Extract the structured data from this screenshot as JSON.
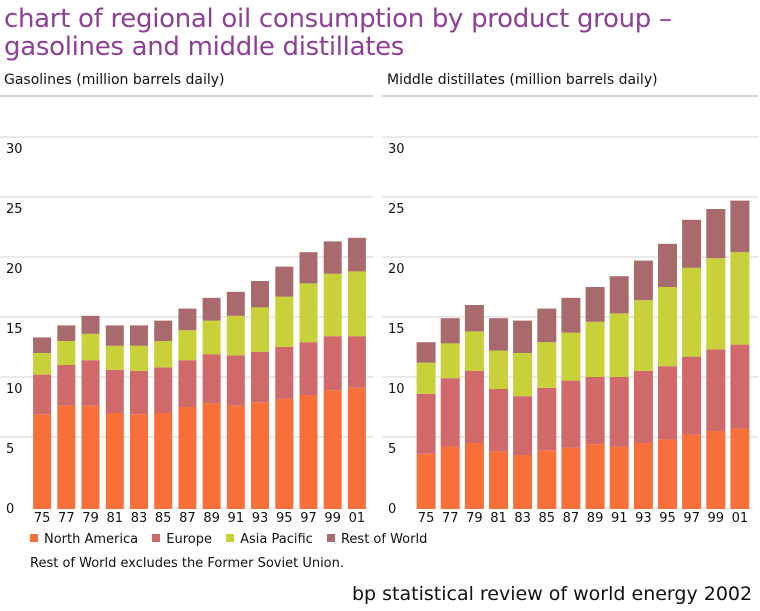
{
  "title_line1": "chart of regional oil consumption by product group –",
  "title_line2": "gasolines and middle distillates",
  "colors": {
    "north_america": "#f7703a",
    "europe": "#d06a6a",
    "asia_pacific": "#c9d13a",
    "rest_of_world": "#a86a6c",
    "title": "#8e3f97"
  },
  "legend": [
    "North America",
    "Europe",
    "Asia Pacific",
    "Rest of World"
  ],
  "note": "Rest of World excludes the Former Soviet Union.",
  "footer": "bp statistical review of world energy 2002",
  "chart_data": [
    {
      "type": "bar",
      "stacked": true,
      "title": "Gasolines (million barrels daily)",
      "categories": [
        "75",
        "77",
        "79",
        "81",
        "83",
        "85",
        "87",
        "89",
        "91",
        "93",
        "95",
        "97",
        "99",
        "01"
      ],
      "yticks": [
        "0",
        "5",
        "10",
        "15",
        "20",
        "25",
        "30"
      ],
      "ylim": [
        0,
        30
      ],
      "series": [
        {
          "name": "North America",
          "values": [
            7.9,
            8.6,
            8.6,
            8.0,
            7.9,
            8.0,
            8.5,
            8.8,
            8.6,
            8.9,
            9.2,
            9.5,
            9.9,
            10.1
          ]
        },
        {
          "name": "Europe",
          "values": [
            3.3,
            3.4,
            3.8,
            3.6,
            3.6,
            3.8,
            3.9,
            4.1,
            4.2,
            4.2,
            4.3,
            4.4,
            4.5,
            4.3
          ]
        },
        {
          "name": "Asia Pacific",
          "values": [
            1.8,
            2.0,
            2.2,
            2.0,
            2.1,
            2.2,
            2.5,
            2.8,
            3.3,
            3.7,
            4.2,
            4.9,
            5.2,
            5.4
          ]
        },
        {
          "name": "Rest of World",
          "values": [
            1.3,
            1.3,
            1.5,
            1.7,
            1.7,
            1.7,
            1.8,
            1.9,
            2.0,
            2.2,
            2.5,
            2.6,
            2.7,
            2.8
          ]
        }
      ]
    },
    {
      "type": "bar",
      "stacked": true,
      "title": "Middle distillates (million barrels daily)",
      "categories": [
        "75",
        "77",
        "79",
        "81",
        "83",
        "85",
        "87",
        "89",
        "91",
        "93",
        "95",
        "97",
        "99",
        "01"
      ],
      "yticks": [
        "0",
        "5",
        "10",
        "15",
        "20",
        "25",
        "30"
      ],
      "ylim": [
        0,
        30
      ],
      "series": [
        {
          "name": "North America",
          "values": [
            4.6,
            5.2,
            5.5,
            4.8,
            4.5,
            4.9,
            5.1,
            5.4,
            5.2,
            5.5,
            5.8,
            6.2,
            6.5,
            6.7
          ]
        },
        {
          "name": "Europe",
          "values": [
            5.0,
            5.7,
            6.0,
            5.2,
            4.9,
            5.2,
            5.6,
            5.6,
            5.8,
            6.0,
            6.1,
            6.5,
            6.8,
            7.0
          ]
        },
        {
          "name": "Asia Pacific",
          "values": [
            2.6,
            2.9,
            3.3,
            3.2,
            3.6,
            3.8,
            4.0,
            4.6,
            5.3,
            5.9,
            6.6,
            7.4,
            7.6,
            7.7
          ]
        },
        {
          "name": "Rest of World",
          "values": [
            1.7,
            2.1,
            2.2,
            2.7,
            2.7,
            2.8,
            2.9,
            2.9,
            3.1,
            3.3,
            3.6,
            4.0,
            4.1,
            4.3
          ]
        }
      ]
    }
  ]
}
